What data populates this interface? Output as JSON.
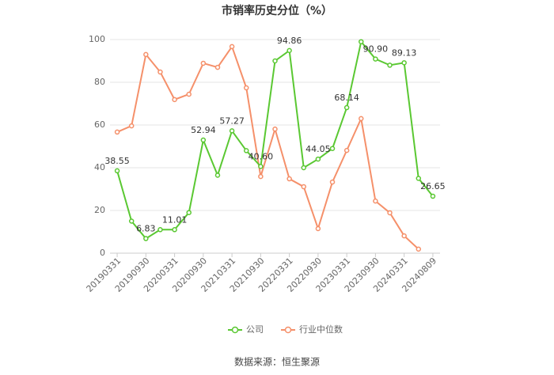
{
  "chart_data": {
    "type": "line",
    "title": "市销率历史分位（%）",
    "categories": [
      "20190331",
      null,
      "20190930",
      null,
      "20200331",
      null,
      "20200930",
      null,
      "20210331",
      null,
      "20210930",
      null,
      "20220331",
      null,
      "20220930",
      null,
      "20230331",
      null,
      "20230930",
      null,
      "20240331",
      null,
      "20240809"
    ],
    "series": [
      {
        "name": "公司",
        "color": "#5ac832",
        "values": [
          38.55,
          15,
          6.83,
          11,
          11.01,
          19,
          52.94,
          36.5,
          57.27,
          48,
          40.6,
          90,
          94.86,
          40,
          44.05,
          49,
          68.14,
          99,
          90.9,
          88,
          89.13,
          35,
          26.65
        ],
        "value_labels": [
          "38.55",
          null,
          "6.83",
          null,
          "11.01",
          null,
          "52.94",
          null,
          "57.27",
          null,
          "40.60",
          null,
          "94.86",
          null,
          "44.05",
          null,
          "68.14",
          null,
          "90.90",
          null,
          "89.13",
          null,
          "26.65"
        ]
      },
      {
        "name": "行业中位数",
        "color": "#f5906a",
        "values": [
          56.7,
          59.6,
          93,
          84.8,
          71.9,
          74.4,
          88.9,
          87,
          96.7,
          77.4,
          35.9,
          58.1,
          34.8,
          31.1,
          11.5,
          33.3,
          48.1,
          63,
          24.4,
          18.9,
          8.1,
          1.9,
          null
        ]
      }
    ],
    "ylim": [
      0,
      100
    ],
    "yticks": [
      0,
      20,
      40,
      60,
      80,
      100
    ],
    "grid": true,
    "source": "数据来源：恒生聚源"
  }
}
